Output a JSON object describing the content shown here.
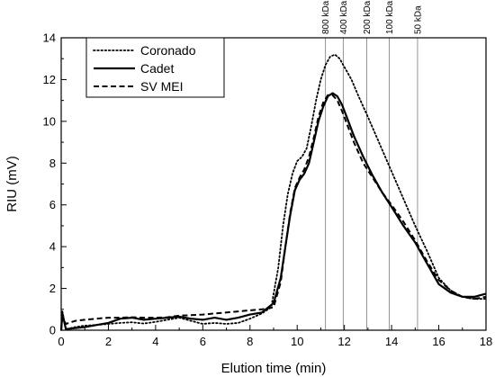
{
  "chart_data": {
    "type": "line",
    "title": "",
    "xlabel": "Elution time (min)",
    "ylabel": "RIU (mV)",
    "xlim": [
      0,
      18
    ],
    "ylim": [
      0,
      14
    ],
    "x_ticks": [
      0,
      2,
      4,
      6,
      8,
      10,
      12,
      14,
      16,
      18
    ],
    "y_ticks": [
      0,
      2,
      4,
      6,
      8,
      10,
      12,
      14
    ],
    "grid": false,
    "legend_position": "top-left",
    "markers": [
      {
        "label": "800 kDa",
        "x": 11.2
      },
      {
        "label": "400 kDa",
        "x": 11.95
      },
      {
        "label": "200 kDa",
        "x": 12.95
      },
      {
        "label": "100 kDa",
        "x": 13.9
      },
      {
        "label": "50 kDa",
        "x": 15.1
      }
    ],
    "series": [
      {
        "name": "Coronado",
        "style": "dotted",
        "x": [
          0,
          0.05,
          0.2,
          0.6,
          1,
          1.5,
          2,
          2.5,
          3,
          3.5,
          4,
          4.5,
          5,
          5.5,
          6,
          6.5,
          7,
          7.5,
          8,
          8.5,
          8.9,
          9.2,
          9.4,
          9.6,
          9.8,
          10.0,
          10.2,
          10.4,
          10.6,
          10.8,
          11.0,
          11.2,
          11.4,
          11.6,
          11.8,
          12.0,
          12.3,
          12.6,
          13.0,
          13.5,
          14.0,
          14.5,
          15.0,
          15.5,
          16.0,
          16.5,
          17.0,
          17.5,
          18.0
        ],
        "y": [
          0,
          0.9,
          0.05,
          0.15,
          0.22,
          0.25,
          0.3,
          0.35,
          0.38,
          0.32,
          0.4,
          0.5,
          0.6,
          0.45,
          0.3,
          0.35,
          0.3,
          0.35,
          0.55,
          0.8,
          1.1,
          3.0,
          5.0,
          6.5,
          7.5,
          8.1,
          8.3,
          8.7,
          9.8,
          11.0,
          12.0,
          12.7,
          13.1,
          13.2,
          13.0,
          12.6,
          12.0,
          11.2,
          10.2,
          8.9,
          7.6,
          6.3,
          5.0,
          3.8,
          2.5,
          1.9,
          1.6,
          1.5,
          1.5
        ]
      },
      {
        "name": "Cadet",
        "style": "solid",
        "x": [
          0,
          0.05,
          0.2,
          0.6,
          1,
          1.5,
          2,
          2.5,
          3,
          3.5,
          4,
          4.5,
          5,
          5.5,
          6,
          6.5,
          7,
          7.5,
          8,
          8.5,
          9.0,
          9.3,
          9.5,
          9.7,
          9.9,
          10.1,
          10.3,
          10.5,
          10.7,
          10.9,
          11.1,
          11.3,
          11.5,
          11.7,
          11.9,
          12.1,
          12.4,
          12.8,
          13.2,
          13.6,
          14.0,
          14.5,
          15.0,
          15.5,
          16.0,
          16.5,
          17.0,
          17.5,
          18.0
        ],
        "y": [
          0,
          0.8,
          0.05,
          0.1,
          0.15,
          0.25,
          0.35,
          0.55,
          0.6,
          0.5,
          0.55,
          0.6,
          0.65,
          0.55,
          0.5,
          0.6,
          0.5,
          0.6,
          0.75,
          0.85,
          1.3,
          2.5,
          4.0,
          5.5,
          6.7,
          7.2,
          7.5,
          8.0,
          9.0,
          10.0,
          10.7,
          11.2,
          11.35,
          11.2,
          10.8,
          10.2,
          9.3,
          8.3,
          7.4,
          6.6,
          5.9,
          5.0,
          4.2,
          3.2,
          2.2,
          1.8,
          1.6,
          1.6,
          1.75
        ]
      },
      {
        "name": "SV MEI",
        "style": "dashed",
        "x": [
          0,
          0.05,
          0.2,
          0.6,
          1,
          1.5,
          2,
          2.5,
          3,
          3.5,
          4,
          4.5,
          5,
          5.5,
          6,
          6.5,
          7,
          7.5,
          8,
          8.5,
          9.0,
          9.3,
          9.5,
          9.7,
          9.9,
          10.1,
          10.3,
          10.5,
          10.7,
          10.9,
          11.1,
          11.3,
          11.5,
          11.7,
          11.9,
          12.1,
          12.4,
          12.8,
          13.2,
          13.6,
          14.0,
          14.5,
          15.0,
          15.5,
          16.0,
          16.5,
          17.0,
          17.5,
          18.0
        ],
        "y": [
          0,
          0.6,
          0.3,
          0.45,
          0.5,
          0.55,
          0.6,
          0.6,
          0.62,
          0.6,
          0.6,
          0.62,
          0.7,
          0.72,
          0.75,
          0.8,
          0.85,
          0.9,
          0.95,
          1.0,
          1.1,
          2.3,
          4.0,
          5.6,
          6.8,
          7.3,
          7.7,
          8.3,
          9.2,
          10.2,
          10.9,
          11.25,
          11.25,
          11.0,
          10.5,
          9.9,
          9.0,
          8.0,
          7.3,
          6.6,
          6.0,
          5.2,
          4.3,
          3.3,
          2.4,
          1.9,
          1.6,
          1.5,
          1.6
        ]
      }
    ]
  }
}
